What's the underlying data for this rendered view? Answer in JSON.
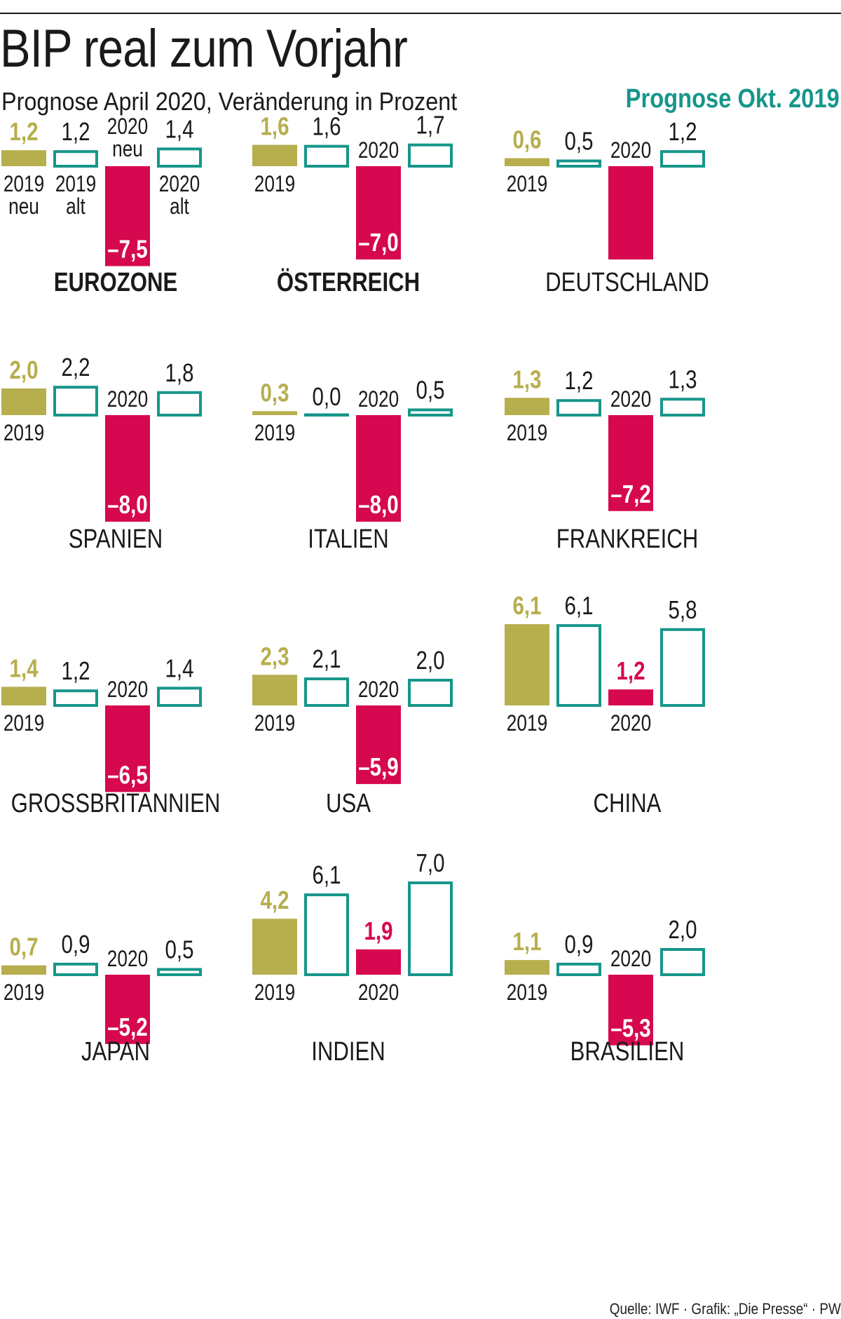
{
  "header": {
    "title": "BIP real zum Vorjahr",
    "subtitle": "Prognose April 2020, Veränderung in Prozent",
    "legend_label": "Prognose Okt. 2019"
  },
  "footer": {
    "source": "Quelle: IWF · Grafik: „Die Presse“ · PW"
  },
  "colors": {
    "new_2019": "#b7ae4e",
    "old_forecast": "#16968a",
    "new_2020": "#d6084f",
    "text": "#1a1a1a"
  },
  "chart_data": {
    "type": "bar",
    "series": [
      "2019 neu",
      "2019 alt",
      "2020 neu",
      "2020 alt"
    ],
    "panels": [
      {
        "country": "EUROZONE",
        "bold": true,
        "values": [
          1.2,
          1.2,
          -7.5,
          1.4
        ],
        "labels": [
          "1,2",
          "1,2",
          "–7,5",
          "1,4"
        ],
        "detailed_axis_labels": true
      },
      {
        "country": "ÖSTERREICH",
        "bold": true,
        "values": [
          1.6,
          1.6,
          -7.0,
          1.7
        ],
        "labels": [
          "1,6",
          "1,6",
          "–7,0",
          "1,7"
        ]
      },
      {
        "country": "DEUTSCHLAND",
        "values": [
          0.6,
          0.5,
          -7.0,
          1.2
        ],
        "labels": [
          "0,6",
          "0,5",
          "",
          "1,2"
        ]
      },
      {
        "country": "SPANIEN",
        "values": [
          2.0,
          2.2,
          -8.0,
          1.8
        ],
        "labels": [
          "2,0",
          "2,2",
          "–8,0",
          "1,8"
        ]
      },
      {
        "country": "ITALIEN",
        "values": [
          0.3,
          0.0,
          -8.0,
          0.5
        ],
        "labels": [
          "0,3",
          "0,0",
          "–8,0",
          "0,5"
        ]
      },
      {
        "country": "FRANKREICH",
        "values": [
          1.3,
          1.2,
          -7.2,
          1.3
        ],
        "labels": [
          "1,3",
          "1,2",
          "–7,2",
          "1,3"
        ]
      },
      {
        "country": "GROSSBRITANNIEN",
        "values": [
          1.4,
          1.2,
          -6.5,
          1.4
        ],
        "labels": [
          "1,4",
          "1,2",
          "–6,5",
          "1,4"
        ]
      },
      {
        "country": "USA",
        "values": [
          2.3,
          2.1,
          -5.9,
          2.0
        ],
        "labels": [
          "2,3",
          "2,1",
          "–5,9",
          "2,0"
        ]
      },
      {
        "country": "CHINA",
        "values": [
          6.1,
          6.1,
          1.2,
          5.8
        ],
        "labels": [
          "6,1",
          "6,1",
          "1,2",
          "5,8"
        ]
      },
      {
        "country": "JAPAN",
        "values": [
          0.7,
          0.9,
          -5.2,
          0.5
        ],
        "labels": [
          "0,7",
          "0,9",
          "–5,2",
          "0,5"
        ]
      },
      {
        "country": "INDIEN",
        "values": [
          4.2,
          6.1,
          1.9,
          7.0
        ],
        "labels": [
          "4,2",
          "6,1",
          "1,9",
          "7,0"
        ]
      },
      {
        "country": "BRASILIEN",
        "values": [
          1.1,
          0.9,
          -5.3,
          2.0
        ],
        "labels": [
          "1,1",
          "0,9",
          "–5,3",
          "2,0"
        ]
      }
    ],
    "axis_labels": {
      "year_2019": "2019",
      "year_2020": "2020",
      "neu": "neu",
      "alt": "alt"
    }
  }
}
